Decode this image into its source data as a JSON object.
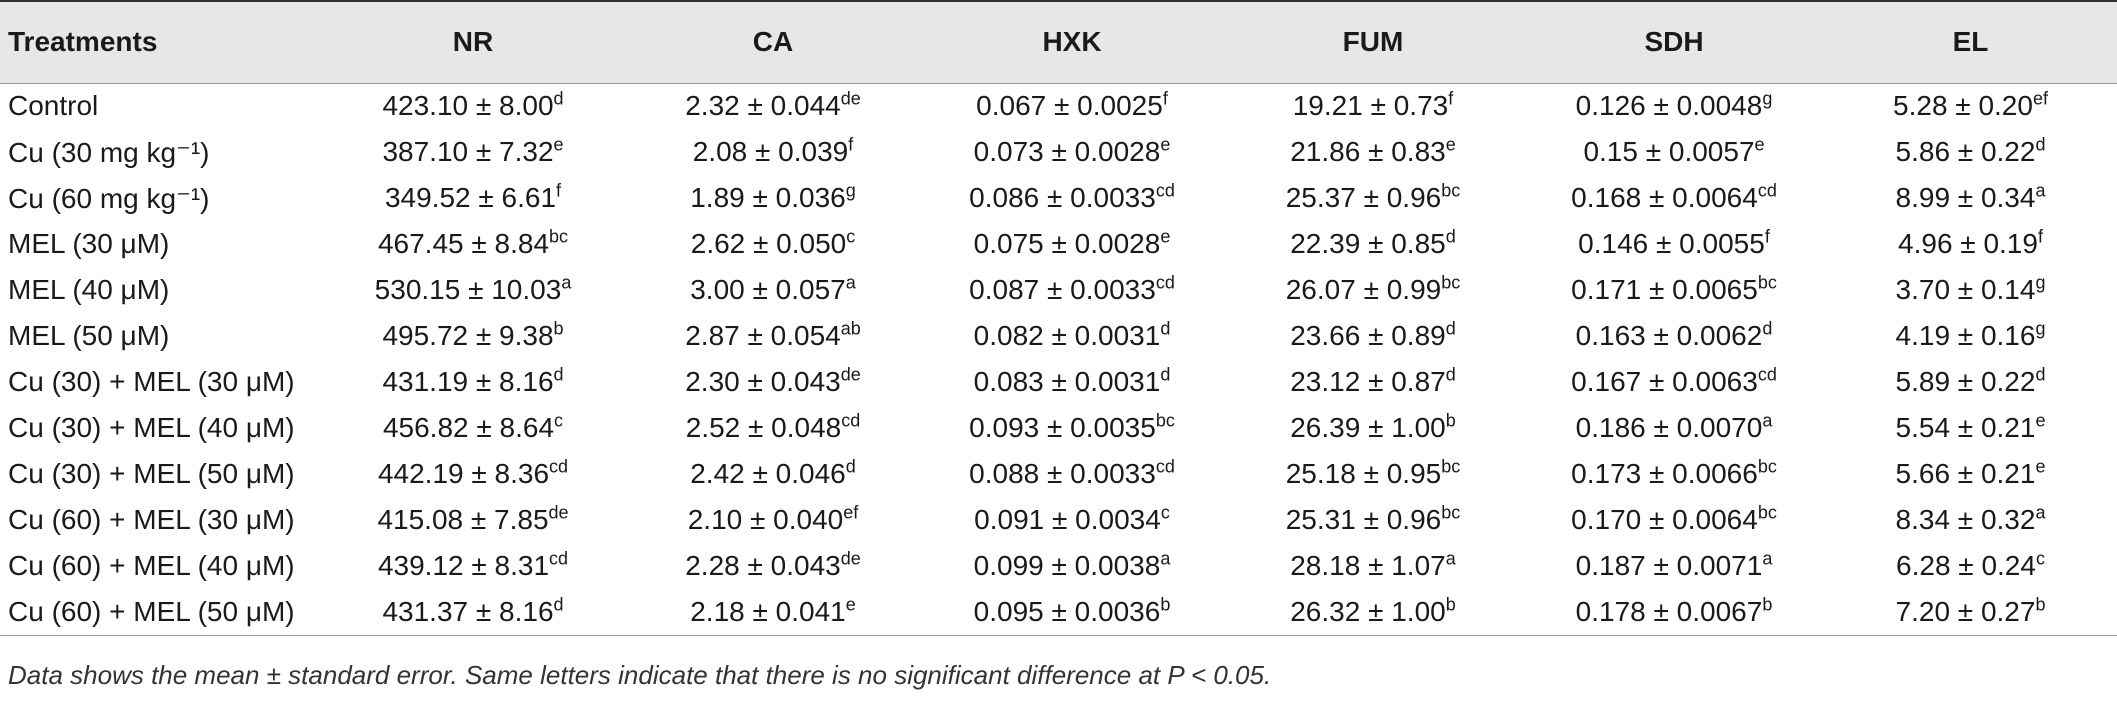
{
  "table": {
    "headers": [
      "Treatments",
      "NR",
      "CA",
      "HXK",
      "FUM",
      "SDH",
      "EL"
    ],
    "rows": [
      {
        "label": "Control",
        "cells": [
          {
            "v": "423.10 ± 8.00",
            "s": "d"
          },
          {
            "v": "2.32 ± 0.044",
            "s": "de"
          },
          {
            "v": "0.067 ± 0.0025",
            "s": "f"
          },
          {
            "v": "19.21 ± 0.73",
            "s": "f"
          },
          {
            "v": "0.126 ± 0.0048",
            "s": "g"
          },
          {
            "v": "5.28 ± 0.20",
            "s": "ef"
          }
        ]
      },
      {
        "label": "Cu (30 mg kg⁻¹)",
        "cells": [
          {
            "v": "387.10 ± 7.32",
            "s": "e"
          },
          {
            "v": "2.08 ± 0.039",
            "s": "f"
          },
          {
            "v": "0.073 ± 0.0028",
            "s": "e"
          },
          {
            "v": "21.86 ± 0.83",
            "s": "e"
          },
          {
            "v": "0.15 ± 0.0057",
            "s": "e"
          },
          {
            "v": "5.86 ± 0.22",
            "s": "d"
          }
        ]
      },
      {
        "label": "Cu (60 mg kg⁻¹)",
        "cells": [
          {
            "v": "349.52 ± 6.61",
            "s": "f"
          },
          {
            "v": "1.89 ± 0.036",
            "s": "g"
          },
          {
            "v": "0.086 ± 0.0033",
            "s": "cd"
          },
          {
            "v": "25.37 ± 0.96",
            "s": "bc"
          },
          {
            "v": "0.168 ± 0.0064",
            "s": "cd"
          },
          {
            "v": "8.99 ± 0.34",
            "s": "a"
          }
        ]
      },
      {
        "label": "MEL (30 μM)",
        "cells": [
          {
            "v": "467.45 ± 8.84",
            "s": "bc"
          },
          {
            "v": "2.62 ± 0.050",
            "s": "c"
          },
          {
            "v": "0.075 ± 0.0028",
            "s": "e"
          },
          {
            "v": "22.39 ± 0.85",
            "s": "d"
          },
          {
            "v": "0.146 ± 0.0055",
            "s": "f"
          },
          {
            "v": "4.96 ± 0.19",
            "s": "f"
          }
        ]
      },
      {
        "label": "MEL (40 μM)",
        "cells": [
          {
            "v": "530.15 ± 10.03",
            "s": "a"
          },
          {
            "v": "3.00 ± 0.057",
            "s": "a"
          },
          {
            "v": "0.087 ± 0.0033",
            "s": "cd"
          },
          {
            "v": "26.07 ± 0.99",
            "s": "bc"
          },
          {
            "v": "0.171 ± 0.0065",
            "s": "bc"
          },
          {
            "v": "3.70 ± 0.14",
            "s": "g"
          }
        ]
      },
      {
        "label": "MEL (50 μM)",
        "cells": [
          {
            "v": "495.72 ± 9.38",
            "s": "b"
          },
          {
            "v": "2.87 ± 0.054",
            "s": "ab"
          },
          {
            "v": "0.082 ± 0.0031",
            "s": "d"
          },
          {
            "v": "23.66 ± 0.89",
            "s": "d"
          },
          {
            "v": "0.163 ± 0.0062",
            "s": "d"
          },
          {
            "v": "4.19 ± 0.16",
            "s": "g"
          }
        ]
      },
      {
        "label": "Cu (30) + MEL (30 μM)",
        "cells": [
          {
            "v": "431.19 ± 8.16",
            "s": "d"
          },
          {
            "v": "2.30 ± 0.043",
            "s": "de"
          },
          {
            "v": "0.083 ± 0.0031",
            "s": "d"
          },
          {
            "v": "23.12 ± 0.87",
            "s": "d"
          },
          {
            "v": "0.167 ± 0.0063",
            "s": "cd"
          },
          {
            "v": "5.89 ± 0.22",
            "s": "d"
          }
        ]
      },
      {
        "label": "Cu (30) + MEL (40 μM)",
        "cells": [
          {
            "v": "456.82 ± 8.64",
            "s": "c"
          },
          {
            "v": "2.52 ± 0.048",
            "s": "cd"
          },
          {
            "v": "0.093 ± 0.0035",
            "s": "bc"
          },
          {
            "v": "26.39 ± 1.00",
            "s": "b"
          },
          {
            "v": "0.186 ± 0.0070",
            "s": "a"
          },
          {
            "v": "5.54 ± 0.21",
            "s": "e"
          }
        ]
      },
      {
        "label": "Cu (30) + MEL (50 μM)",
        "cells": [
          {
            "v": "442.19 ± 8.36",
            "s": "cd"
          },
          {
            "v": "2.42 ± 0.046",
            "s": "d"
          },
          {
            "v": "0.088 ± 0.0033",
            "s": "cd"
          },
          {
            "v": "25.18 ± 0.95",
            "s": "bc"
          },
          {
            "v": "0.173 ± 0.0066",
            "s": "bc"
          },
          {
            "v": "5.66 ± 0.21",
            "s": "e"
          }
        ]
      },
      {
        "label": "Cu (60) + MEL (30 μM)",
        "cells": [
          {
            "v": "415.08 ± 7.85",
            "s": "de"
          },
          {
            "v": "2.10 ± 0.040",
            "s": "ef"
          },
          {
            "v": "0.091 ± 0.0034",
            "s": "c"
          },
          {
            "v": "25.31 ± 0.96",
            "s": "bc"
          },
          {
            "v": "0.170 ± 0.0064",
            "s": "bc"
          },
          {
            "v": "8.34 ± 0.32",
            "s": "a"
          }
        ]
      },
      {
        "label": "Cu (60) + MEL (40 μM)",
        "cells": [
          {
            "v": "439.12 ± 8.31",
            "s": "cd"
          },
          {
            "v": "2.28 ± 0.043",
            "s": "de"
          },
          {
            "v": "0.099 ± 0.0038",
            "s": "a"
          },
          {
            "v": "28.18 ± 1.07",
            "s": "a"
          },
          {
            "v": "0.187 ± 0.0071",
            "s": "a"
          },
          {
            "v": "6.28 ± 0.24",
            "s": "c"
          }
        ]
      },
      {
        "label": "Cu (60) + MEL (50 μM)",
        "cells": [
          {
            "v": "431.37 ± 8.16",
            "s": "d"
          },
          {
            "v": "2.18 ± 0.041",
            "s": "e"
          },
          {
            "v": "0.095 ± 0.0036",
            "s": "b"
          },
          {
            "v": "26.32 ± 1.00",
            "s": "b"
          },
          {
            "v": "0.178 ± 0.0067",
            "s": "b"
          },
          {
            "v": "7.20 ± 0.27",
            "s": "b"
          }
        ]
      }
    ]
  },
  "footnote": "Data shows the mean ± standard error. Same letters indicate that there is no significant difference at P < 0.05."
}
